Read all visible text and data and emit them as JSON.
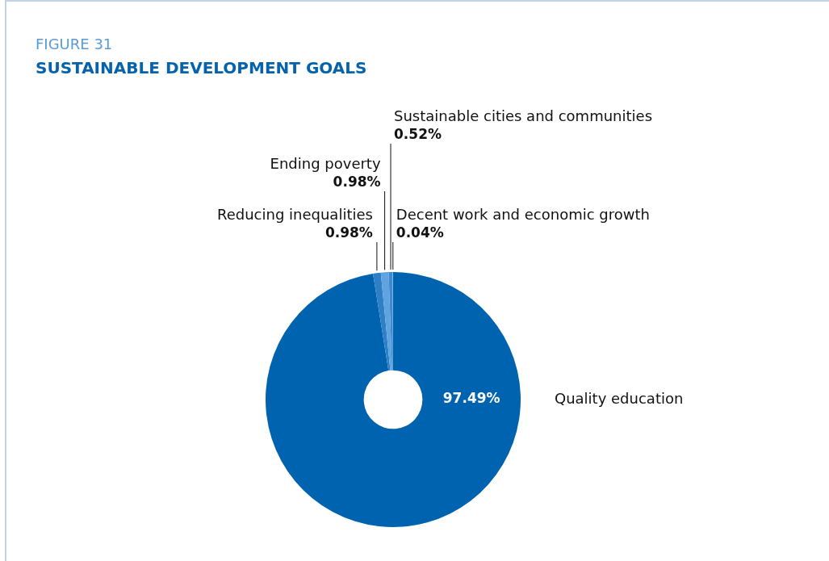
{
  "chart_data": {
    "type": "donut",
    "subtitle": "FIGURE 31",
    "title": "SUSTAINABLE DEVELOPMENT GOALS",
    "categories": [
      "Quality education",
      "Reducing inequalities",
      "Ending poverty",
      "Sustainable cities and communities",
      "Decent work and economic growth"
    ],
    "values": [
      97.49,
      0.98,
      0.98,
      0.52,
      0.04
    ],
    "value_labels": [
      "97.49%",
      "0.98%",
      "0.98%",
      "0.52%",
      "0.04%"
    ],
    "colors": [
      "#0063af",
      "#2f7fc6",
      "#5fa3df",
      "#3d8ad0",
      "#8cbde9"
    ],
    "legend": false
  }
}
